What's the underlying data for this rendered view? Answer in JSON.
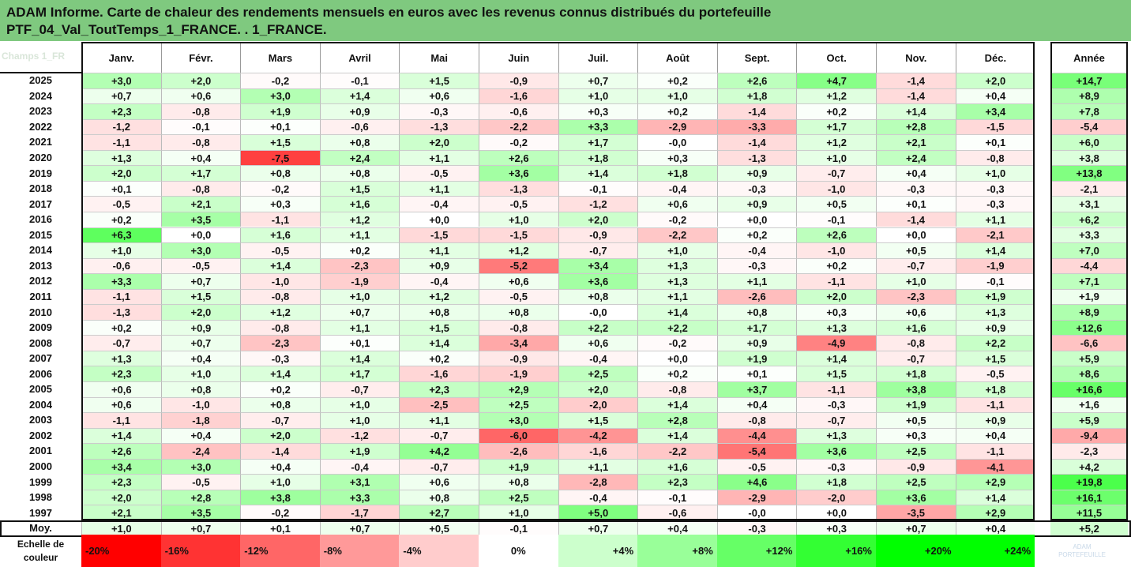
{
  "title": {
    "line1": "ADAM Informe. Carte de chaleur des rendements mensuels en euros avec les revenus connus distribués du portefeuille",
    "line2": "PTF_04_Val_ToutTemps_1_FRANCE. . 1_FRANCE."
  },
  "corner_label": "Champs 1_FR",
  "chart_data": {
    "type": "heatmap",
    "columns": [
      "Janv.",
      "Févr.",
      "Mars",
      "Avril",
      "Mai",
      "Juin",
      "Juil.",
      "Août",
      "Sept.",
      "Oct.",
      "Nov.",
      "Déc."
    ],
    "year_column": "Année",
    "rows": [
      {
        "label": "2025",
        "values": [
          "+3,0",
          "+2,0",
          "-0,2",
          "-0,1",
          "+1,5",
          "-0,9",
          "+0,7",
          "+0,2",
          "+2,6",
          "+4,7",
          "-1,4",
          "+2,0"
        ],
        "year": "+14,7"
      },
      {
        "label": "2024",
        "values": [
          "+0,7",
          "+0,6",
          "+3,0",
          "+1,4",
          "+0,6",
          "-1,6",
          "+1,0",
          "+1,0",
          "+1,8",
          "+1,2",
          "-1,4",
          "+0,4"
        ],
        "year": "+8,9"
      },
      {
        "label": "2023",
        "values": [
          "+2,3",
          "-0,8",
          "+1,9",
          "+0,9",
          "-0,3",
          "-0,6",
          "+0,3",
          "+0,2",
          "-1,4",
          "+0,2",
          "+1,4",
          "+3,4"
        ],
        "year": "+7,8"
      },
      {
        "label": "2022",
        "values": [
          "-1,2",
          "-0,1",
          "+0,1",
          "-0,6",
          "-1,3",
          "-2,2",
          "+3,3",
          "-2,9",
          "-3,3",
          "+1,7",
          "+2,8",
          "-1,5"
        ],
        "year": "-5,4"
      },
      {
        "label": "2021",
        "values": [
          "-1,1",
          "-0,8",
          "+1,5",
          "+0,8",
          "+2,0",
          "-0,2",
          "+1,7",
          "-0,0",
          "-1,4",
          "+1,2",
          "+2,1",
          "+0,1"
        ],
        "year": "+6,0"
      },
      {
        "label": "2020",
        "values": [
          "+1,3",
          "+0,4",
          "-7,5",
          "+2,4",
          "+1,1",
          "+2,6",
          "+1,8",
          "+0,3",
          "-1,3",
          "+1,0",
          "+2,4",
          "-0,8"
        ],
        "year": "+3,8"
      },
      {
        "label": "2019",
        "values": [
          "+2,0",
          "+1,7",
          "+0,8",
          "+0,8",
          "-0,5",
          "+3,6",
          "+1,4",
          "+1,8",
          "+0,9",
          "-0,7",
          "+0,4",
          "+1,0"
        ],
        "year": "+13,8"
      },
      {
        "label": "2018",
        "values": [
          "+0,1",
          "-0,8",
          "-0,2",
          "+1,5",
          "+1,1",
          "-1,3",
          "-0,1",
          "-0,4",
          "-0,3",
          "-1,0",
          "-0,3",
          "-0,3"
        ],
        "year": "-2,1"
      },
      {
        "label": "2017",
        "values": [
          "-0,5",
          "+2,1",
          "+0,3",
          "+1,6",
          "-0,4",
          "-0,5",
          "-1,2",
          "+0,6",
          "+0,9",
          "+0,5",
          "+0,1",
          "-0,3"
        ],
        "year": "+3,1"
      },
      {
        "label": "2016",
        "values": [
          "+0,2",
          "+3,5",
          "-1,1",
          "+1,2",
          "+0,0",
          "+1,0",
          "+2,0",
          "-0,2",
          "+0,0",
          "-0,1",
          "-1,4",
          "+1,1"
        ],
        "year": "+6,2"
      },
      {
        "label": "2015",
        "values": [
          "+6,3",
          "+0,0",
          "+1,6",
          "+1,1",
          "-1,5",
          "-1,5",
          "-0,9",
          "-2,2",
          "+0,2",
          "+2,6",
          "+0,0",
          "-2,1"
        ],
        "year": "+3,3"
      },
      {
        "label": "2014",
        "values": [
          "+1,0",
          "+3,0",
          "-0,5",
          "+0,2",
          "+1,1",
          "+1,2",
          "-0,7",
          "+1,0",
          "-0,4",
          "-1,0",
          "+0,5",
          "+1,4"
        ],
        "year": "+7,0"
      },
      {
        "label": "2013",
        "values": [
          "-0,6",
          "-0,5",
          "+1,4",
          "-2,3",
          "+0,9",
          "-5,2",
          "+3,4",
          "+1,3",
          "-0,3",
          "+0,2",
          "-0,7",
          "-1,9"
        ],
        "year": "-4,4"
      },
      {
        "label": "2012",
        "values": [
          "+3,3",
          "+0,7",
          "-1,0",
          "-1,9",
          "-0,4",
          "+0,6",
          "+3,6",
          "+1,3",
          "+1,1",
          "-1,1",
          "+1,0",
          "-0,1"
        ],
        "year": "+7,1"
      },
      {
        "label": "2011",
        "values": [
          "-1,1",
          "+1,5",
          "-0,8",
          "+1,0",
          "+1,2",
          "-0,5",
          "+0,8",
          "+1,1",
          "-2,6",
          "+2,0",
          "-2,3",
          "+1,9"
        ],
        "year": "+1,9"
      },
      {
        "label": "2010",
        "values": [
          "-1,3",
          "+2,0",
          "+1,2",
          "+0,7",
          "+0,8",
          "+0,8",
          "-0,0",
          "+1,4",
          "+0,8",
          "+0,3",
          "+0,6",
          "+1,3"
        ],
        "year": "+8,9"
      },
      {
        "label": "2009",
        "values": [
          "+0,2",
          "+0,9",
          "-0,8",
          "+1,1",
          "+1,5",
          "-0,8",
          "+2,2",
          "+2,2",
          "+1,7",
          "+1,3",
          "+1,6",
          "+0,9"
        ],
        "year": "+12,6"
      },
      {
        "label": "2008",
        "values": [
          "-0,7",
          "+0,7",
          "-2,3",
          "+0,1",
          "+1,4",
          "-3,4",
          "+0,6",
          "-0,2",
          "+0,9",
          "-4,9",
          "-0,8",
          "+2,2"
        ],
        "year": "-6,6"
      },
      {
        "label": "2007",
        "values": [
          "+1,3",
          "+0,4",
          "-0,3",
          "+1,4",
          "+0,2",
          "-0,9",
          "-0,4",
          "+0,0",
          "+1,9",
          "+1,4",
          "-0,7",
          "+1,5"
        ],
        "year": "+5,9"
      },
      {
        "label": "2006",
        "values": [
          "+2,3",
          "+1,0",
          "+1,4",
          "+1,7",
          "-1,6",
          "-1,9",
          "+2,5",
          "+0,2",
          "+0,1",
          "+1,5",
          "+1,8",
          "-0,5"
        ],
        "year": "+8,6"
      },
      {
        "label": "2005",
        "values": [
          "+0,6",
          "+0,8",
          "+0,2",
          "-0,7",
          "+2,3",
          "+2,9",
          "+2,0",
          "-0,8",
          "+3,7",
          "-1,1",
          "+3,8",
          "+1,8"
        ],
        "year": "+16,6"
      },
      {
        "label": "2004",
        "values": [
          "+0,6",
          "-1,0",
          "+0,8",
          "+1,0",
          "-2,5",
          "+2,5",
          "-2,0",
          "+1,4",
          "+0,4",
          "-0,3",
          "+1,9",
          "-1,1"
        ],
        "year": "+1,6"
      },
      {
        "label": "2003",
        "values": [
          "-1,1",
          "-1,8",
          "-0,7",
          "+1,0",
          "+1,1",
          "+3,0",
          "+1,5",
          "+2,8",
          "-0,8",
          "-0,7",
          "+0,5",
          "+0,9"
        ],
        "year": "+5,9"
      },
      {
        "label": "2002",
        "values": [
          "+1,4",
          "+0,4",
          "+2,0",
          "-1,2",
          "-0,7",
          "-6,0",
          "-4,2",
          "+1,4",
          "-4,4",
          "+1,3",
          "+0,3",
          "+0,4"
        ],
        "year": "-9,4"
      },
      {
        "label": "2001",
        "values": [
          "+2,6",
          "-2,4",
          "-1,4",
          "+1,9",
          "+4,2",
          "-2,6",
          "-1,6",
          "-2,2",
          "-5,4",
          "+3,6",
          "+2,5",
          "-1,1"
        ],
        "year": "-2,3"
      },
      {
        "label": "2000",
        "values": [
          "+3,4",
          "+3,0",
          "+0,4",
          "-0,4",
          "-0,7",
          "+1,9",
          "+1,1",
          "+1,6",
          "-0,5",
          "-0,3",
          "-0,9",
          "-4,1"
        ],
        "year": "+4,2"
      },
      {
        "label": "1999",
        "values": [
          "+2,3",
          "-0,5",
          "+1,0",
          "+3,1",
          "+0,6",
          "+0,8",
          "-2,8",
          "+2,3",
          "+4,6",
          "+1,8",
          "+2,5",
          "+2,9"
        ],
        "year": "+19,8"
      },
      {
        "label": "1998",
        "values": [
          "+2,0",
          "+2,8",
          "+3,8",
          "+3,3",
          "+0,8",
          "+2,5",
          "-0,4",
          "-0,1",
          "-2,9",
          "-2,0",
          "+3,6",
          "+1,4"
        ],
        "year": "+16,1"
      },
      {
        "label": "1997",
        "values": [
          "+2,1",
          "+3,5",
          "-0,2",
          "-1,7",
          "+2,7",
          "+1,0",
          "+5,0",
          "-0,6",
          "-0,0",
          "+0,0",
          "-3,5",
          "+2,9"
        ],
        "year": "+11,5"
      }
    ],
    "average_row": {
      "label": "Moy.",
      "values": [
        "+1,0",
        "+0,7",
        "+0,1",
        "+0,7",
        "+0,5",
        "-0,1",
        "+0,7",
        "+0,4",
        "-0,3",
        "+0,3",
        "+0,7",
        "+0,4"
      ],
      "year": "+5,2"
    },
    "color_scale": {
      "label_line1": "Echelle de",
      "label_line2": "couleur",
      "stops": [
        "-20%",
        "-16%",
        "-12%",
        "-8%",
        "-4%",
        "0%",
        "+4%",
        "+8%",
        "+12%",
        "+16%",
        "+20%",
        "+24%"
      ],
      "negative_color": "#ff0000",
      "neutral_color": "#ffffff",
      "positive_color": "#00ff00"
    }
  },
  "watermark": {
    "line1": "ADAM",
    "line2": "PORTEFEUILLE"
  }
}
